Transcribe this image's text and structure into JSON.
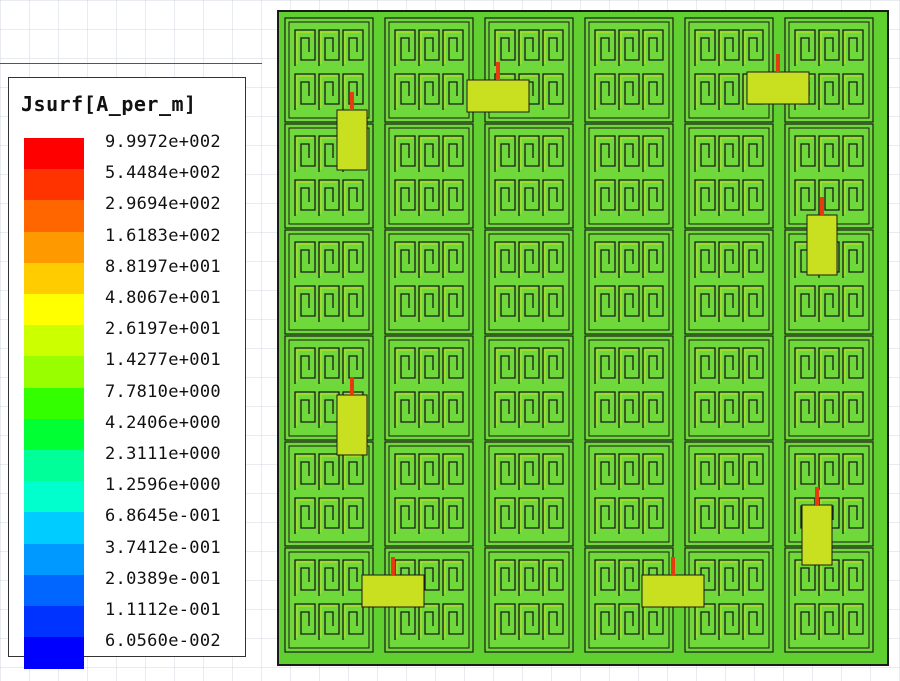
{
  "chart_data": {
    "type": "heatmap",
    "title": "Jsurf[A_per_m]",
    "colorbar": {
      "tick_labels": [
        "9.9972e+002",
        "5.4484e+002",
        "2.9694e+002",
        "1.6183e+002",
        "8.8197e+001",
        "4.8067e+001",
        "2.6197e+001",
        "1.4277e+001",
        "7.7810e+000",
        "4.2406e+000",
        "2.3111e+000",
        "1.2596e+000",
        "6.8645e-001",
        "3.7412e-001",
        "2.0389e-001",
        "1.1112e-001",
        "6.0560e-002"
      ],
      "tick_values": [
        999.72,
        544.84,
        296.94,
        161.83,
        88.197,
        48.067,
        26.197,
        14.277,
        7.781,
        4.2406,
        2.3111,
        1.2596,
        0.68645,
        0.37412,
        0.20389,
        0.11112,
        0.06056
      ],
      "colors": [
        "#ff0000",
        "#ff3300",
        "#ff6600",
        "#ff9900",
        "#ffcc00",
        "#ffff00",
        "#ccff00",
        "#99ff00",
        "#33ff00",
        "#00ff33",
        "#00ff99",
        "#00ffcc",
        "#00ccff",
        "#0099ff",
        "#0066ff",
        "#0033ff",
        "#0000ff"
      ],
      "scale": "log"
    },
    "grid": {
      "rows": 6,
      "cols": 6
    },
    "field_colors": {
      "base": "#5fd030",
      "unit_cell": "#6fd83a",
      "trace": "#c8e020",
      "hotspot": "#e83a10",
      "outline": "#1a1a1a"
    }
  }
}
